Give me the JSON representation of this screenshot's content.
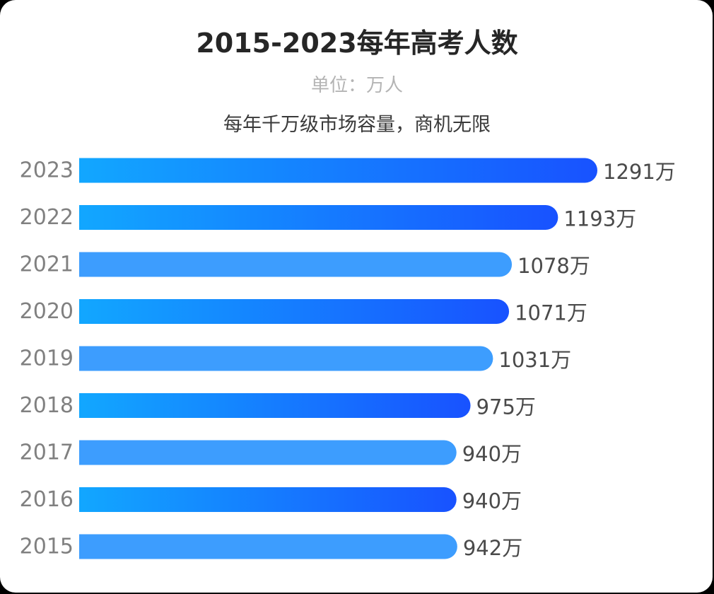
{
  "chart_data": {
    "type": "bar",
    "orientation": "horizontal",
    "title": "2015-2023每年高考人数",
    "unit_label": "单位：万人",
    "subtitle": "每年千万级市场容量，商机无限",
    "value_suffix": "万",
    "categories": [
      "2023",
      "2022",
      "2021",
      "2020",
      "2019",
      "2018",
      "2017",
      "2016",
      "2015"
    ],
    "values": [
      1291,
      1193,
      1078,
      1071,
      1031,
      975,
      940,
      940,
      942
    ],
    "bar_styles": [
      "gradient",
      "gradient",
      "solid",
      "gradient",
      "solid",
      "gradient",
      "solid",
      "gradient",
      "solid"
    ],
    "colors": {
      "gradient_start": "#12a7ff",
      "gradient_end": "#1852ff",
      "solid": "#3d9dfe",
      "year_label": "#808080",
      "value_label": "#4a4a4a"
    },
    "grid": false
  }
}
